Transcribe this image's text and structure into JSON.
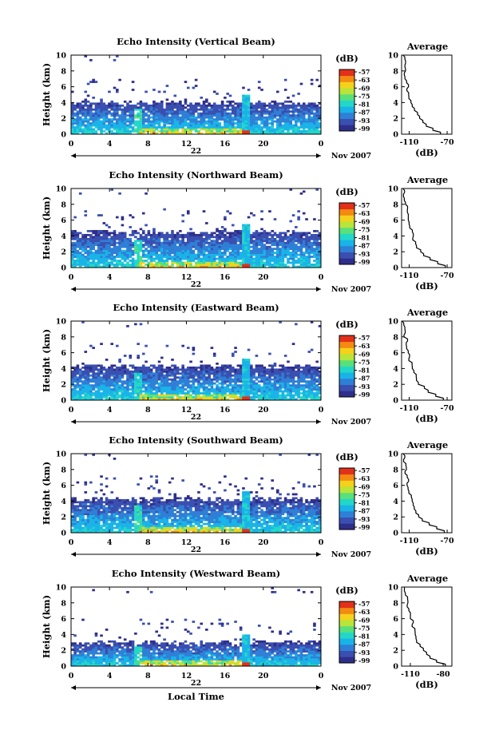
{
  "chart_data": [
    {
      "type": "heatmap",
      "title": "Echo Intensity (Vertical Beam)",
      "ylabel": "Height (km)",
      "yticks": [
        "0",
        "2",
        "4",
        "6",
        "8",
        "10"
      ],
      "xticks": [
        "0",
        "4",
        "8",
        "12",
        "16",
        "20",
        "0"
      ],
      "date_label": "22",
      "month_year": "Nov 2007",
      "colorbar": {
        "unit": "(dB)",
        "ticks": [
          "-57",
          "-63",
          "-69",
          "-75",
          "-81",
          "-87",
          "-93",
          "-99"
        ]
      },
      "cloud_top_km": 4.0,
      "average": {
        "title": "Average",
        "xlabel": "(dB)",
        "xticks": [
          "-110",
          "-70"
        ],
        "xlim": [
          -118,
          -65
        ],
        "ylim": [
          0,
          10
        ],
        "profile_db": [
          -77,
          -85,
          -92,
          -97,
          -100,
          -102,
          -104,
          -106,
          -108,
          -109,
          -110,
          -111,
          -112,
          -113,
          -113,
          -114,
          -114,
          -115,
          -115,
          -116,
          -116
        ]
      }
    },
    {
      "type": "heatmap",
      "title": "Echo Intensity (Northward Beam)",
      "ylabel": "Height (km)",
      "yticks": [
        "0",
        "2",
        "4",
        "6",
        "8",
        "10"
      ],
      "xticks": [
        "0",
        "4",
        "8",
        "12",
        "16",
        "20",
        "0"
      ],
      "date_label": "22",
      "month_year": "Nov 2007",
      "colorbar": {
        "unit": "(dB)",
        "ticks": [
          "-57",
          "-63",
          "-69",
          "-75",
          "-81",
          "-87",
          "-93",
          "-99"
        ]
      },
      "cloud_top_km": 4.5,
      "average": {
        "title": "Average",
        "xlabel": "(dB)",
        "xticks": [
          "-110",
          "-70"
        ],
        "xlim": [
          -118,
          -65
        ],
        "ylim": [
          0,
          10
        ],
        "profile_db": [
          -72,
          -80,
          -88,
          -94,
          -98,
          -101,
          -103,
          -105,
          -107,
          -108,
          -109,
          -110,
          -111,
          -112,
          -113,
          -113,
          -114,
          -114,
          -115,
          -115,
          -116
        ]
      }
    },
    {
      "type": "heatmap",
      "title": "Echo Intensity (Eastward Beam)",
      "ylabel": "Height (km)",
      "yticks": [
        "0",
        "2",
        "4",
        "6",
        "8",
        "10"
      ],
      "xticks": [
        "0",
        "4",
        "8",
        "12",
        "16",
        "20",
        "0"
      ],
      "date_label": "22",
      "month_year": "Nov 2007",
      "colorbar": {
        "unit": "(dB)",
        "ticks": [
          "-57",
          "-63",
          "-69",
          "-75",
          "-81",
          "-87",
          "-93",
          "-99"
        ]
      },
      "cloud_top_km": 4.3,
      "average": {
        "title": "Average",
        "xlabel": "(dB)",
        "xticks": [
          "-110",
          "-70"
        ],
        "xlim": [
          -118,
          -65
        ],
        "ylim": [
          0,
          10
        ],
        "profile_db": [
          -74,
          -82,
          -90,
          -95,
          -99,
          -102,
          -104,
          -106,
          -107,
          -108,
          -109,
          -110,
          -111,
          -112,
          -112,
          -113,
          -114,
          -114,
          -115,
          -115,
          -116
        ]
      }
    },
    {
      "type": "heatmap",
      "title": "Echo Intensity (Southward Beam)",
      "ylabel": "Height (km)",
      "yticks": [
        "0",
        "2",
        "4",
        "6",
        "8",
        "10"
      ],
      "xticks": [
        "0",
        "4",
        "8",
        "12",
        "16",
        "20",
        "0"
      ],
      "date_label": "22",
      "month_year": "Nov 2007",
      "colorbar": {
        "unit": "(dB)",
        "ticks": [
          "-57",
          "-63",
          "-69",
          "-75",
          "-81",
          "-87",
          "-93",
          "-99"
        ]
      },
      "cloud_top_km": 4.3,
      "average": {
        "title": "Average",
        "xlabel": "(dB)",
        "xticks": [
          "-110",
          "-70"
        ],
        "xlim": [
          -118,
          -65
        ],
        "ylim": [
          0,
          10
        ],
        "profile_db": [
          -73,
          -81,
          -89,
          -95,
          -99,
          -102,
          -104,
          -105,
          -107,
          -108,
          -109,
          -110,
          -111,
          -112,
          -112,
          -113,
          -114,
          -114,
          -115,
          -115,
          -116
        ]
      }
    },
    {
      "type": "heatmap",
      "title": "Echo Intensity (Westward Beam)",
      "ylabel": "Height (km)",
      "yticks": [
        "0",
        "2",
        "4",
        "6",
        "8",
        "10"
      ],
      "xticks": [
        "0",
        "4",
        "8",
        "12",
        "16",
        "20",
        "0"
      ],
      "date_label": "22",
      "month_year": "Nov 2007",
      "xlabel": "Local Time",
      "colorbar": {
        "unit": "(dB)",
        "ticks": [
          "-57",
          "-63",
          "-69",
          "-75",
          "-81",
          "-87",
          "-93",
          "-99"
        ]
      },
      "cloud_top_km": 3.0,
      "average": {
        "title": "Average",
        "xlabel": "(dB)",
        "xticks": [
          "-110",
          "-80"
        ],
        "xlim": [
          -118,
          -72
        ],
        "ylim": [
          0,
          10
        ],
        "profile_db": [
          -78,
          -86,
          -92,
          -96,
          -99,
          -101,
          -103,
          -104,
          -105,
          -106,
          -107,
          -108,
          -109,
          -110,
          -111,
          -112,
          -113,
          -113,
          -114,
          -115,
          -115
        ]
      }
    }
  ],
  "colors": {
    "scale": [
      "#2e2e8a",
      "#3a4fb0",
      "#2f7fd6",
      "#19b3e8",
      "#23d7c8",
      "#58e07a",
      "#b9e43a",
      "#f4d21c",
      "#f48a12",
      "#e2311a"
    ],
    "axis": "#000000",
    "background": "#ffffff"
  }
}
